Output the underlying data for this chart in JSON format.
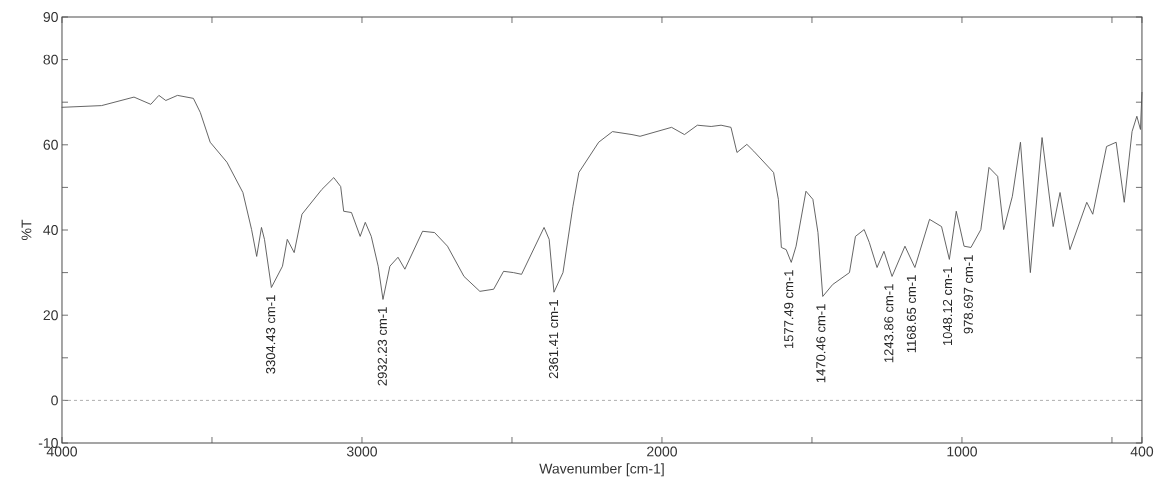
{
  "chart_data": {
    "type": "line",
    "xlabel": "Wavenumber [cm-1]",
    "ylabel": "%T",
    "xlim": [
      4000,
      400
    ],
    "ylim": [
      -10,
      90
    ],
    "xticks": [
      4000,
      {
        "value": 3500,
        "label": null
      },
      3000,
      {
        "value": 2500,
        "label": null
      },
      2000,
      {
        "value": 1500,
        "label": null
      },
      1000,
      {
        "value": 500,
        "label": null
      },
      400
    ],
    "yticks": [
      -10,
      0,
      {
        "value": 10,
        "label": null
      },
      20,
      {
        "value": 30,
        "label": null
      },
      40,
      {
        "value": 50,
        "label": null
      },
      60,
      {
        "value": 70,
        "label": null
      },
      80,
      90
    ],
    "grid": false,
    "marker": "none",
    "line_style": "solid",
    "ref_lines": [
      {
        "axis": "y",
        "value": 0,
        "color": "#9a9a9a",
        "line_style": "dashed"
      }
    ],
    "series": [
      {
        "color": "#555555",
        "x": [
          4000,
          3868,
          3760,
          3704,
          3677,
          3654,
          3615,
          3562,
          3539,
          3506,
          3450,
          3397,
          3368,
          3351,
          3335,
          3325,
          3302,
          3265,
          3249,
          3226,
          3200,
          3134,
          3094,
          3071,
          3061,
          3035,
          3006,
          2989,
          2969,
          2946,
          2930,
          2907,
          2880,
          2857,
          2798,
          2758,
          2715,
          2660,
          2607,
          2561,
          2528,
          2495,
          2468,
          2393,
          2376,
          2360,
          2330,
          2297,
          2277,
          2211,
          2165,
          2100,
          2073,
          1968,
          1925,
          1882,
          1836,
          1803,
          1770,
          1750,
          1717,
          1694,
          1628,
          1612,
          1602,
          1586,
          1569,
          1553,
          1520,
          1497,
          1480,
          1464,
          1431,
          1375,
          1355,
          1326,
          1309,
          1283,
          1260,
          1233,
          1190,
          1157,
          1108,
          1068,
          1042,
          1019,
          993,
          970,
          937,
          910,
          881,
          861,
          832,
          805,
          772,
          733,
          696,
          673,
          640,
          584,
          564,
          518,
          486,
          459,
          433,
          417,
          405,
          400
        ],
        "values": [
          68.8,
          69.2,
          71.2,
          69.5,
          71.6,
          70.4,
          71.6,
          70.9,
          67.6,
          60.6,
          55.9,
          48.8,
          40.1,
          33.8,
          40.6,
          37.8,
          26.5,
          31.5,
          37.8,
          34.7,
          43.7,
          49.5,
          52.3,
          50.2,
          44.4,
          44.1,
          38.5,
          41.8,
          38.5,
          31.5,
          23.7,
          31.5,
          33.6,
          30.8,
          39.7,
          39.4,
          36.2,
          29.1,
          25.6,
          26.1,
          30.3,
          30.0,
          29.6,
          40.6,
          37.8,
          25.4,
          30.0,
          45.5,
          53.5,
          60.6,
          63.1,
          62.4,
          62.0,
          64.1,
          62.4,
          64.6,
          64.3,
          64.6,
          64.1,
          58.2,
          60.1,
          58.5,
          53.5,
          47.2,
          35.9,
          35.4,
          32.4,
          36.2,
          49.1,
          47.2,
          39.4,
          24.4,
          27.2,
          30.0,
          38.5,
          40.1,
          37.1,
          31.2,
          35.0,
          29.1,
          36.2,
          31.2,
          42.5,
          40.8,
          33.1,
          44.4,
          36.2,
          35.9,
          40.1,
          54.7,
          52.6,
          40.1,
          47.9,
          60.6,
          30.0,
          61.7,
          40.8,
          48.8,
          35.4,
          46.5,
          43.7,
          59.6,
          60.6,
          46.5,
          63.1,
          66.7,
          63.6,
          72.3
        ]
      }
    ],
    "annotations": [
      {
        "text": "3304.43 cm-1",
        "x": 3304.43,
        "y": 26.5
      },
      {
        "text": "2932.23 cm-1",
        "x": 2932.23,
        "y": 23.7
      },
      {
        "text": "2361.41 cm-1",
        "x": 2361.41,
        "y": 25.4
      },
      {
        "text": "1577.49 cm-1",
        "x": 1577.49,
        "y": 32.4
      },
      {
        "text": "1470.46 cm-1",
        "x": 1470.46,
        "y": 24.4
      },
      {
        "text": "1243.86 cm-1",
        "x": 1243.86,
        "y": 29.1
      },
      {
        "text": "1168.65 cm-1",
        "x": 1168.65,
        "y": 31.2
      },
      {
        "text": "1048.12 cm-1",
        "x": 1048.12,
        "y": 33.1
      },
      {
        "text": "978.697 cm-1",
        "x": 978.697,
        "y": 35.9
      }
    ]
  }
}
